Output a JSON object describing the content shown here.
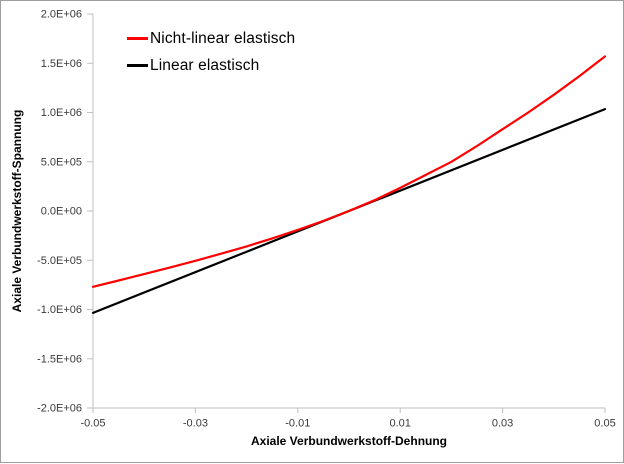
{
  "frame": {
    "background": "#ffffff",
    "border_color": "#9d9d9d"
  },
  "colors": {
    "axis_line": "#bfbfbf",
    "tick_label": "#3a3a3a",
    "series_nonlinear": "#ff0000",
    "series_linear": "#000000"
  },
  "chart_data": {
    "type": "line",
    "title": "",
    "xlabel": "Axiale Verbundwerkstoff-Dehnung",
    "ylabel": "Axiale Verbundwerkstoff-Spannung",
    "xlim": [
      -0.05,
      0.05
    ],
    "ylim": [
      -2000000,
      2000000
    ],
    "grid": false,
    "legend_position": "top-left-inside",
    "x_ticks": {
      "values": [
        -0.05,
        -0.03,
        -0.01,
        0.01,
        0.03,
        0.05
      ],
      "labels": [
        "-0.05",
        "-0.03",
        "-0.01",
        "0.01",
        "0.03",
        "0.05"
      ]
    },
    "y_ticks": {
      "values": [
        2000000,
        1500000,
        1000000,
        500000,
        0,
        -500000,
        -1000000,
        -1500000,
        -2000000
      ],
      "labels": [
        "2.0E+06",
        "1.5E+06",
        "1.0E+06",
        "5.0E+05",
        "0.0E+00",
        "-5.0E+05",
        "-1.0E+06",
        "-1.5E+06",
        "-2.0E+06"
      ]
    },
    "series": [
      {
        "name": "Linear elastisch",
        "color": "#000000",
        "x": [
          -0.05,
          0.05
        ],
        "y": [
          -1035000,
          1035000
        ]
      },
      {
        "name": "Nicht-linear elastisch",
        "color": "#ff0000",
        "x": [
          -0.05,
          -0.045,
          -0.04,
          -0.035,
          -0.03,
          -0.025,
          -0.02,
          -0.015,
          -0.01,
          -0.005,
          0,
          0.005,
          0.01,
          0.015,
          0.02,
          0.025,
          0.03,
          0.035,
          0.04,
          0.045,
          0.05
        ],
        "y": [
          -770000,
          -706000,
          -641000,
          -575000,
          -506000,
          -434000,
          -359000,
          -278000,
          -192000,
          -100000,
          0,
          110000,
          235000,
          367000,
          500000,
          660000,
          830000,
          1000000,
          1180000,
          1370000,
          1570000
        ]
      }
    ]
  },
  "legend": {
    "items": [
      {
        "label": "Nicht-linear elastisch",
        "color": "#ff0000"
      },
      {
        "label": "Linear elastisch",
        "color": "#000000"
      }
    ]
  }
}
